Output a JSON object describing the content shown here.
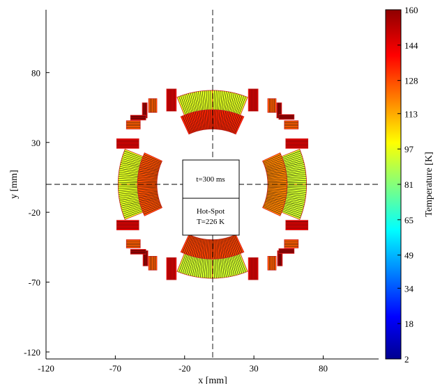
{
  "chart_data": {
    "type": "heatmap",
    "title": "",
    "xlabel": "x [mm]",
    "ylabel": "y [mm]",
    "xlim": [
      -120,
      120
    ],
    "ylim": [
      -125,
      125
    ],
    "x_ticks": [
      -120,
      -70,
      -20,
      30,
      80
    ],
    "y_ticks": [
      80,
      30,
      -20,
      -70,
      -120
    ],
    "annotations": {
      "time_label": "t=300 ms",
      "hotspot_label": "Hot-Spot",
      "hotspot_value": "T=226 K"
    },
    "colorbar": {
      "label": "Temperature [K]",
      "range": [
        2,
        160
      ],
      "ticks": [
        160,
        144,
        128,
        113,
        97,
        81,
        65,
        49,
        34,
        18,
        2
      ],
      "colormap": "jet"
    },
    "quadrants": [
      {
        "position": "top",
        "inner_layer_temp_K": 135,
        "outer_layer_temp_K": 96,
        "block_temps_K": [
          142,
          126,
          154
        ]
      },
      {
        "position": "bottom",
        "inner_layer_temp_K": 130,
        "outer_layer_temp_K": 94,
        "block_temps_K": [
          142,
          126,
          154
        ]
      },
      {
        "position": "left",
        "inner_layer_temp_K": 128,
        "outer_layer_temp_K": 96,
        "block_temps_K": [
          142,
          126,
          154
        ]
      },
      {
        "position": "right",
        "inner_layer_temp_K": 120,
        "outer_layer_temp_K": 94,
        "block_temps_K": [
          142,
          126,
          154
        ]
      }
    ],
    "grid": false,
    "legend": "none"
  },
  "colors": {
    "axis": "#000000",
    "centerline": "#000000",
    "conductor_edge": "#d42020",
    "strand_line": "#111111"
  }
}
